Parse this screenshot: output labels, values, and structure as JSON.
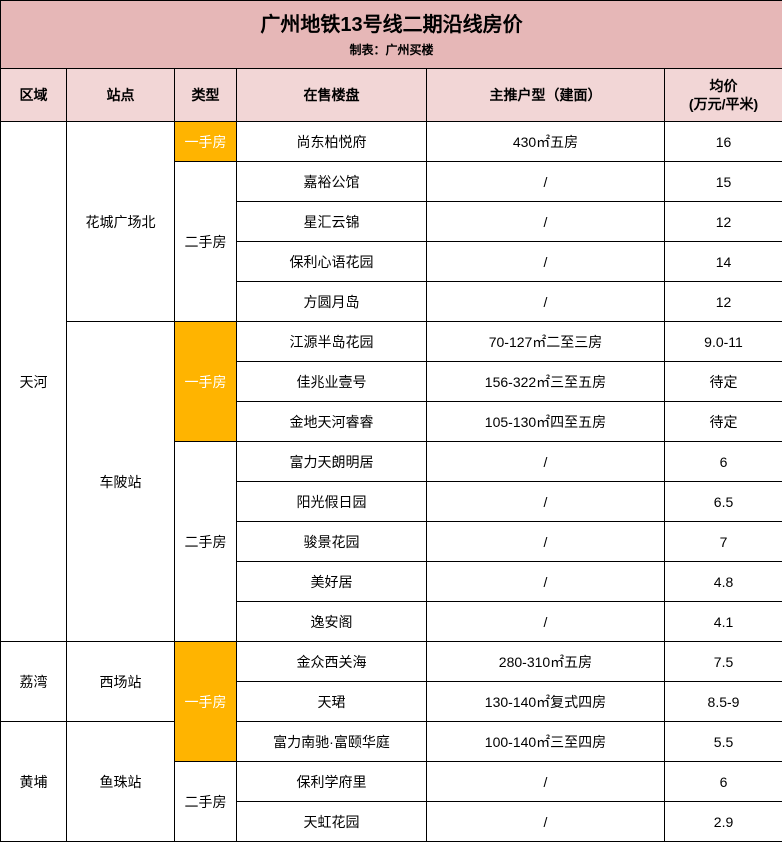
{
  "title": {
    "main": "广州地铁13号线二期沿线房价",
    "sub": "制表：广州买楼"
  },
  "colors": {
    "title_bg": "#e6b7b7",
    "header_bg": "#f2d6d6",
    "primary_bg": "#ffb400",
    "primary_text": "#ffffff",
    "border": "#000000",
    "text": "#000000",
    "bg": "#ffffff"
  },
  "columns": {
    "region": "区域",
    "station": "站点",
    "type": "类型",
    "project": "在售楼盘",
    "unit": "主推户型（建面）",
    "price": "均价\n(万元/平米)"
  },
  "rows": [
    {
      "region": "天河",
      "station": "花城广场北",
      "type": "一手房",
      "type_primary": true,
      "project": "尚东柏悦府",
      "unit": "430㎡五房",
      "price": "16"
    },
    {
      "region": "",
      "station": "",
      "type": "二手房",
      "type_primary": false,
      "project": "嘉裕公馆",
      "unit": "/",
      "price": "15"
    },
    {
      "region": "",
      "station": "",
      "type": "",
      "type_primary": false,
      "project": "星汇云锦",
      "unit": "/",
      "price": "12"
    },
    {
      "region": "",
      "station": "",
      "type": "",
      "type_primary": false,
      "project": "保利心语花园",
      "unit": "/",
      "price": "14"
    },
    {
      "region": "",
      "station": "",
      "type": "",
      "type_primary": false,
      "project": "方圆月岛",
      "unit": "/",
      "price": "12"
    },
    {
      "region": "",
      "station": "车陂站",
      "type": "一手房",
      "type_primary": true,
      "project": "江源半岛花园",
      "unit": "70-127㎡二至三房",
      "price": "9.0-11"
    },
    {
      "region": "",
      "station": "",
      "type": "",
      "type_primary": true,
      "project": "佳兆业壹号",
      "unit": "156-322㎡三至五房",
      "price": "待定"
    },
    {
      "region": "",
      "station": "",
      "type": "",
      "type_primary": true,
      "project": "金地天河睿睿",
      "unit": "105-130㎡四至五房",
      "price": "待定"
    },
    {
      "region": "",
      "station": "",
      "type": "二手房",
      "type_primary": false,
      "project": "富力天朗明居",
      "unit": "/",
      "price": "6"
    },
    {
      "region": "",
      "station": "",
      "type": "",
      "type_primary": false,
      "project": "阳光假日园",
      "unit": "/",
      "price": "6.5"
    },
    {
      "region": "",
      "station": "",
      "type": "",
      "type_primary": false,
      "project": "骏景花园",
      "unit": "/",
      "price": "7"
    },
    {
      "region": "",
      "station": "",
      "type": "",
      "type_primary": false,
      "project": "美好居",
      "unit": "/",
      "price": "4.8"
    },
    {
      "region": "",
      "station": "",
      "type": "",
      "type_primary": false,
      "project": "逸安阁",
      "unit": "/",
      "price": "4.1"
    },
    {
      "region": "荔湾",
      "station": "西场站",
      "type": "一手房",
      "type_primary": true,
      "project": "金众西关海",
      "unit": "280-310㎡五房",
      "price": "7.5"
    },
    {
      "region": "",
      "station": "",
      "type": "",
      "type_primary": true,
      "project": "天珺",
      "unit": "130-140㎡复式四房",
      "price": "8.5-9"
    },
    {
      "region": "黄埔",
      "station": "鱼珠站",
      "type": "",
      "type_primary": true,
      "project": "富力南驰·富颐华庭",
      "unit": "100-140㎡三至四房",
      "price": "5.5"
    },
    {
      "region": "",
      "station": "",
      "type": "二手房",
      "type_primary": false,
      "project": "保利学府里",
      "unit": "/",
      "price": "6"
    },
    {
      "region": "",
      "station": "",
      "type": "",
      "type_primary": false,
      "project": "天虹花园",
      "unit": "/",
      "price": "2.9"
    }
  ],
  "spans": {
    "region": [
      13,
      null,
      null,
      null,
      null,
      null,
      null,
      null,
      null,
      null,
      null,
      null,
      null,
      2,
      null,
      3,
      null,
      null
    ],
    "station": [
      5,
      null,
      null,
      null,
      null,
      8,
      null,
      null,
      null,
      null,
      null,
      null,
      null,
      2,
      null,
      3,
      null,
      null
    ],
    "type": [
      1,
      4,
      null,
      null,
      null,
      3,
      null,
      null,
      5,
      null,
      null,
      null,
      null,
      3,
      null,
      null,
      2,
      null
    ]
  }
}
